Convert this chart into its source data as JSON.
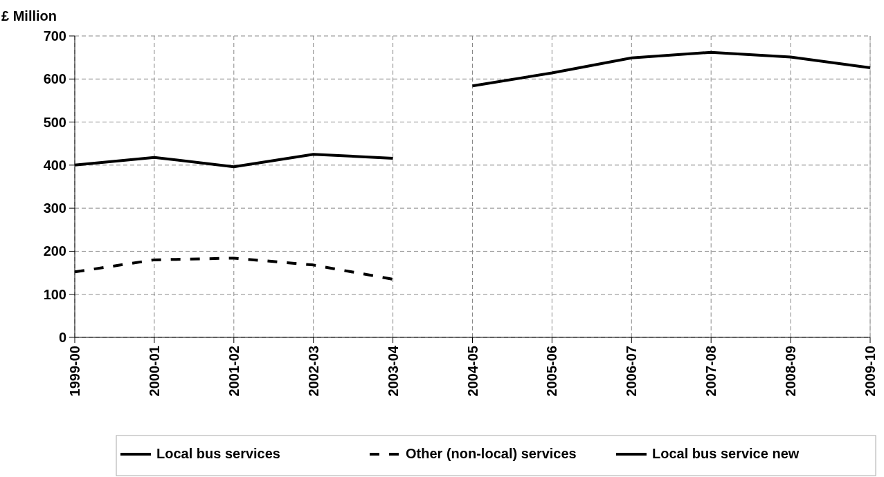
{
  "chart_data": {
    "type": "line",
    "ylabel": "£ Million",
    "categories": [
      "1999-00",
      "2000-01",
      "2001-02",
      "2002-03",
      "2003-04",
      "2004-05",
      "2005-06",
      "2006-07",
      "2007-08",
      "2008-09",
      "2009-10"
    ],
    "series": [
      {
        "name": "Local bus services",
        "color": "#000000",
        "line_style": "solid",
        "values": [
          400,
          418,
          396,
          425,
          416,
          null,
          null,
          null,
          null,
          null,
          null
        ]
      },
      {
        "name": "Other (non-local) services",
        "color": "#000000",
        "line_style": "dashed",
        "values": [
          152,
          180,
          184,
          168,
          135,
          null,
          null,
          null,
          null,
          null,
          null
        ]
      },
      {
        "name": "Local bus service new",
        "color": "#000000",
        "line_style": "solid",
        "values": [
          null,
          null,
          null,
          null,
          null,
          584,
          614,
          649,
          662,
          651,
          626
        ]
      }
    ],
    "ylim": [
      0,
      700
    ],
    "yticks": [
      0,
      100,
      200,
      300,
      400,
      500,
      600,
      700
    ],
    "grid": true,
    "legend": "bottom"
  }
}
